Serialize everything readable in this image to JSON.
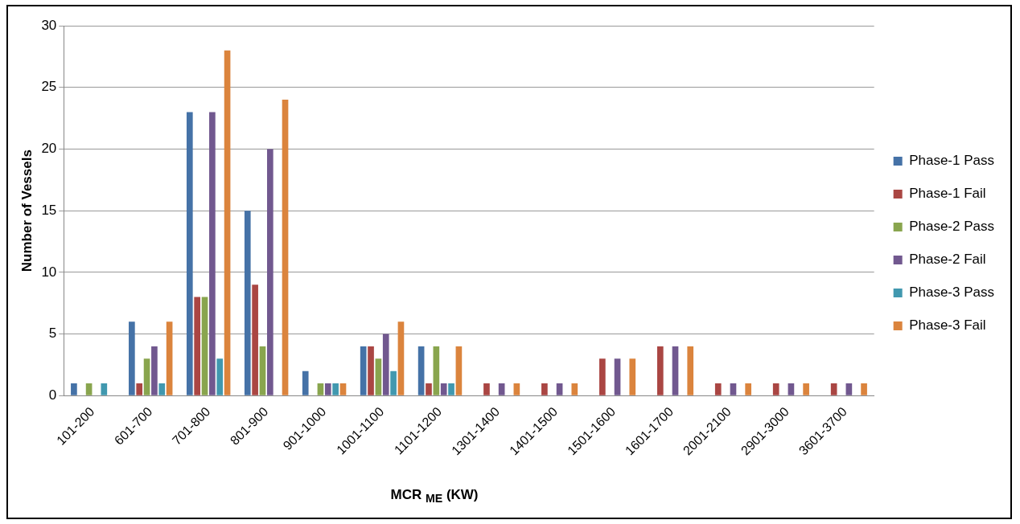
{
  "chart_data": {
    "type": "bar",
    "xlabel": "MCR $_{ME}$ (KW)",
    "ylabel": "Number of Vessels",
    "categories": [
      "101-200",
      "601-700",
      "701-800",
      "801-900",
      "901-1000",
      "1001-1100",
      "1101-1200",
      "1301-1400",
      "1401-1500",
      "1501-1600",
      "1601-1700",
      "2001-2100",
      "2901-3000",
      "3601-3700"
    ],
    "series": [
      {
        "name": "Phase-1 Pass",
        "color": "#4572a7",
        "values": [
          1,
          6,
          23,
          15,
          2,
          4,
          4,
          null,
          null,
          null,
          null,
          null,
          null,
          null
        ]
      },
      {
        "name": "Phase-1 Fail",
        "color": "#aa4643",
        "values": [
          null,
          1,
          8,
          9,
          null,
          4,
          1,
          1,
          1,
          3,
          4,
          1,
          1,
          1
        ]
      },
      {
        "name": "Phase-2 Pass",
        "color": "#89a54e",
        "values": [
          1,
          3,
          8,
          4,
          1,
          3,
          4,
          null,
          null,
          null,
          null,
          null,
          null,
          null
        ]
      },
      {
        "name": "Phase-2 Fail",
        "color": "#71588f",
        "values": [
          null,
          4,
          23,
          20,
          1,
          5,
          1,
          1,
          1,
          3,
          4,
          1,
          1,
          1
        ]
      },
      {
        "name": "Phase-3 Pass",
        "color": "#4198af",
        "values": [
          1,
          1,
          3,
          null,
          1,
          2,
          1,
          null,
          null,
          null,
          null,
          null,
          null,
          null
        ]
      },
      {
        "name": "Phase-3 Fail",
        "color": "#db843d",
        "values": [
          null,
          6,
          28,
          24,
          1,
          6,
          4,
          1,
          1,
          3,
          4,
          1,
          1,
          1
        ]
      }
    ],
    "ylim": [
      0,
      30
    ],
    "yticks": [
      0,
      5,
      10,
      15,
      20,
      25,
      30
    ],
    "grid": "y",
    "legend": "right"
  }
}
